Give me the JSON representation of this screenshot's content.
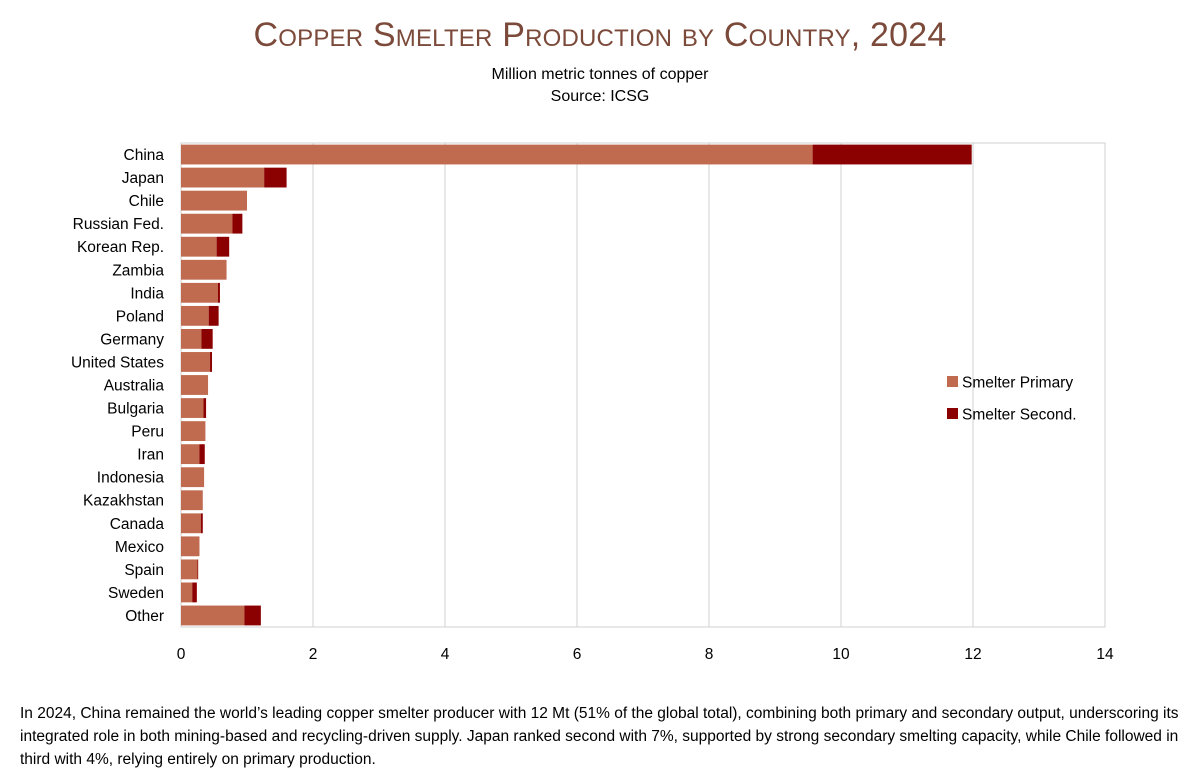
{
  "chart_data": {
    "type": "bar",
    "orientation": "horizontal",
    "stacked": true,
    "title": "Copper Smelter Production by Country, 2024",
    "subtitle": "Million metric tonnes of copper",
    "source": "Source: ICSG",
    "categories": [
      "China",
      "Japan",
      "Chile",
      "Russian Fed.",
      "Korean Rep.",
      "Zambia",
      "India",
      "Poland",
      "Germany",
      "United States",
      "Australia",
      "Bulgaria",
      "Peru",
      "Iran",
      "Indonesia",
      "Kazakhstan",
      "Canada",
      "Mexico",
      "Spain",
      "Sweden",
      "Other"
    ],
    "series": [
      {
        "name": "Smelter Primary",
        "color": "#c06a50",
        "values": [
          9.57,
          1.26,
          1.0,
          0.78,
          0.54,
          0.69,
          0.56,
          0.42,
          0.31,
          0.44,
          0.41,
          0.34,
          0.37,
          0.28,
          0.35,
          0.33,
          0.3,
          0.28,
          0.25,
          0.17,
          0.96
        ]
      },
      {
        "name": "Smelter Second.",
        "color": "#8b0000",
        "values": [
          2.41,
          0.34,
          0.0,
          0.15,
          0.19,
          0.0,
          0.03,
          0.15,
          0.17,
          0.03,
          0.0,
          0.04,
          0.0,
          0.08,
          0.0,
          0.0,
          0.03,
          0.0,
          0.01,
          0.07,
          0.25
        ]
      }
    ],
    "xlim": [
      0,
      14
    ],
    "xticks": [
      "0",
      "2",
      "4",
      "6",
      "8",
      "10",
      "12",
      "14"
    ],
    "grid": true,
    "legend": "right"
  },
  "caption": "In 2024, China remained the world’s leading copper smelter producer with 12 Mt (51% of the global total), combining both primary and secondary output, underscoring its integrated role in both mining-based and recycling-driven supply.  Japan ranked second with 7%, supported by strong secondary smelting capacity, while Chile followed in third with 4%, relying entirely on primary production."
}
